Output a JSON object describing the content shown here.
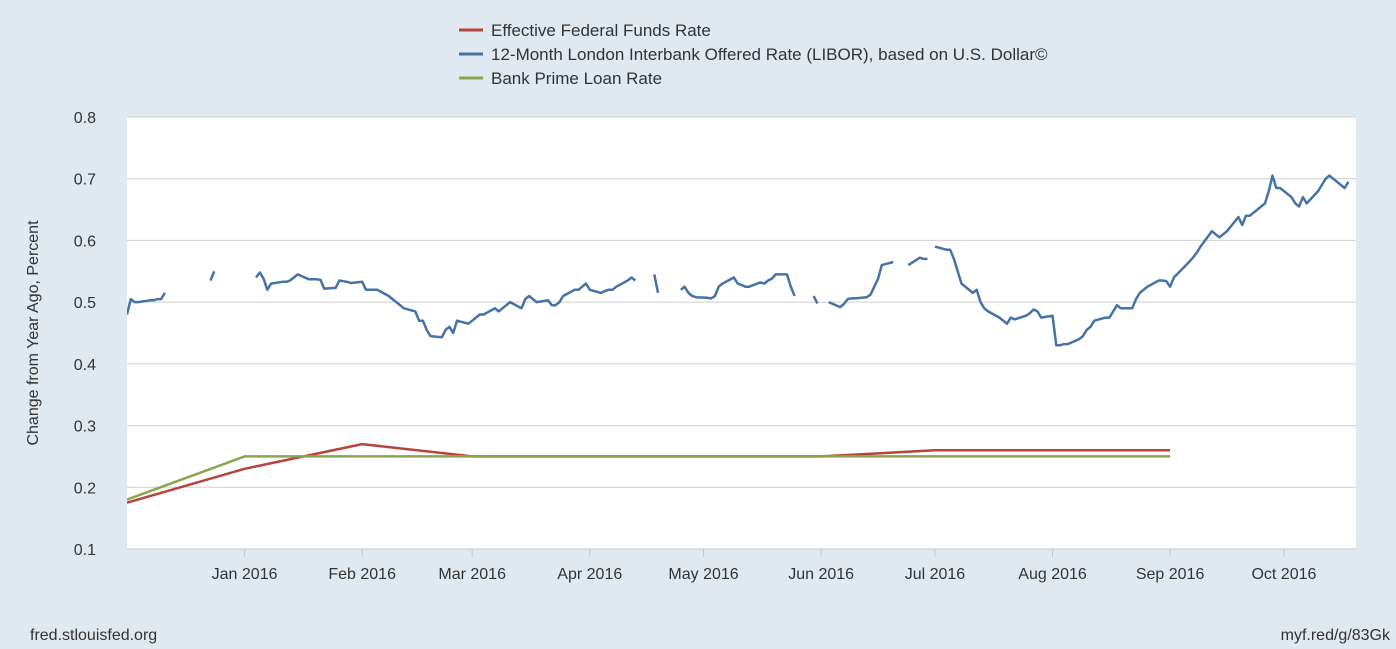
{
  "chart_data": {
    "type": "line",
    "ylabel": "Change from Year Ago, Percent",
    "ylim": [
      0.1,
      0.8
    ],
    "yticks": [
      0.1,
      0.2,
      0.3,
      0.4,
      0.5,
      0.6,
      0.7,
      0.8
    ],
    "ytick_labels": [
      "0.1",
      "0.2",
      "0.3",
      "0.4",
      "0.5",
      "0.6",
      "0.7",
      "0.8"
    ],
    "x_start": "2015-12-01",
    "x_end": "2016-10-20",
    "xtick_labels": [
      "Jan 2016",
      "Feb 2016",
      "Mar 2016",
      "Apr 2016",
      "May 2016",
      "Jun 2016",
      "Jul 2016",
      "Aug 2016",
      "Sep 2016",
      "Oct 2016"
    ],
    "xtick_dates": [
      "2016-01-01",
      "2016-02-01",
      "2016-03-01",
      "2016-04-01",
      "2016-05-01",
      "2016-06-01",
      "2016-07-01",
      "2016-08-01",
      "2016-09-01",
      "2016-10-01"
    ],
    "grid": true,
    "legend_position": "top-center",
    "series": [
      {
        "name": "Effective Federal Funds Rate",
        "color": "#b5443f",
        "points": [
          [
            "2015-12-01",
            0.175
          ],
          [
            "2016-01-01",
            0.23
          ],
          [
            "2016-02-01",
            0.27
          ],
          [
            "2016-03-01",
            0.25
          ],
          [
            "2016-04-01",
            0.25
          ],
          [
            "2016-05-01",
            0.25
          ],
          [
            "2016-06-01",
            0.25
          ],
          [
            "2016-07-01",
            0.26
          ],
          [
            "2016-08-01",
            0.26
          ],
          [
            "2016-09-01",
            0.26
          ]
        ]
      },
      {
        "name": "12-Month London Interbank Offered Rate (LIBOR), based on U.S. Dollar©",
        "color": "#4572a7",
        "points": [
          [
            "2015-12-01",
            0.48
          ],
          [
            "2015-12-02",
            0.505
          ],
          [
            "2015-12-03",
            0.5
          ],
          [
            "2015-12-04",
            0.5
          ],
          [
            "2015-12-07",
            0.503
          ],
          [
            "2015-12-08",
            0.503
          ],
          [
            "2015-12-09",
            0.505
          ],
          [
            "2015-12-10",
            0.505
          ],
          [
            "2015-12-11",
            0.515
          ],
          [
            "2015-12-14",
            null
          ],
          [
            "2015-12-23",
            0.535
          ],
          [
            "2015-12-24",
            0.55
          ],
          [
            "2015-12-25",
            null
          ],
          [
            "2016-01-04",
            0.54
          ],
          [
            "2016-01-05",
            0.548
          ],
          [
            "2016-01-06",
            0.538
          ],
          [
            "2016-01-07",
            0.52
          ],
          [
            "2016-01-08",
            0.53
          ],
          [
            "2016-01-11",
            0.533
          ],
          [
            "2016-01-12",
            0.533
          ],
          [
            "2016-01-13",
            0.535
          ],
          [
            "2016-01-14",
            0.54
          ],
          [
            "2016-01-15",
            0.545
          ],
          [
            "2016-01-18",
            0.537
          ],
          [
            "2016-01-19",
            0.537
          ],
          [
            "2016-01-20",
            0.537
          ],
          [
            "2016-01-21",
            0.536
          ],
          [
            "2016-01-22",
            0.522
          ],
          [
            "2016-01-25",
            0.523
          ],
          [
            "2016-01-26",
            0.535
          ],
          [
            "2016-01-27",
            0.534
          ],
          [
            "2016-01-28",
            0.533
          ],
          [
            "2016-01-29",
            0.531
          ],
          [
            "2016-02-01",
            0.533
          ],
          [
            "2016-02-02",
            0.52
          ],
          [
            "2016-02-03",
            0.52
          ],
          [
            "2016-02-04",
            0.52
          ],
          [
            "2016-02-05",
            0.52
          ],
          [
            "2016-02-08",
            0.51
          ],
          [
            "2016-02-09",
            0.505
          ],
          [
            "2016-02-10",
            0.5
          ],
          [
            "2016-02-11",
            0.495
          ],
          [
            "2016-02-12",
            0.49
          ],
          [
            "2016-02-15",
            0.485
          ],
          [
            "2016-02-16",
            0.47
          ],
          [
            "2016-02-17",
            0.47
          ],
          [
            "2016-02-18",
            0.455
          ],
          [
            "2016-02-19",
            0.445
          ],
          [
            "2016-02-22",
            0.443
          ],
          [
            "2016-02-23",
            0.455
          ],
          [
            "2016-02-24",
            0.46
          ],
          [
            "2016-02-25",
            0.45
          ],
          [
            "2016-02-26",
            0.47
          ],
          [
            "2016-02-29",
            0.465
          ],
          [
            "2016-03-01",
            0.47
          ],
          [
            "2016-03-02",
            0.475
          ],
          [
            "2016-03-03",
            0.48
          ],
          [
            "2016-03-04",
            0.48
          ],
          [
            "2016-03-07",
            0.49
          ],
          [
            "2016-03-08",
            0.485
          ],
          [
            "2016-03-09",
            0.49
          ],
          [
            "2016-03-10",
            0.495
          ],
          [
            "2016-03-11",
            0.5
          ],
          [
            "2016-03-14",
            0.49
          ],
          [
            "2016-03-15",
            0.505
          ],
          [
            "2016-03-16",
            0.51
          ],
          [
            "2016-03-17",
            0.505
          ],
          [
            "2016-03-18",
            0.5
          ],
          [
            "2016-03-21",
            0.503
          ],
          [
            "2016-03-22",
            0.495
          ],
          [
            "2016-03-23",
            0.495
          ],
          [
            "2016-03-24",
            0.5
          ],
          [
            "2016-03-25",
            0.51
          ],
          [
            "2016-03-28",
            0.52
          ],
          [
            "2016-03-29",
            0.52
          ],
          [
            "2016-03-30",
            0.525
          ],
          [
            "2016-03-31",
            0.53
          ],
          [
            "2016-04-01",
            0.52
          ],
          [
            "2016-04-04",
            0.515
          ],
          [
            "2016-04-05",
            0.518
          ],
          [
            "2016-04-06",
            0.52
          ],
          [
            "2016-04-07",
            0.52
          ],
          [
            "2016-04-08",
            0.525
          ],
          [
            "2016-04-11",
            0.535
          ],
          [
            "2016-04-12",
            0.54
          ],
          [
            "2016-04-13",
            0.535
          ],
          [
            "2016-04-14",
            null
          ],
          [
            "2016-04-18",
            0.545
          ],
          [
            "2016-04-19",
            0.515
          ],
          [
            "2016-04-20",
            null
          ],
          [
            "2016-04-25",
            0.52
          ],
          [
            "2016-04-26",
            0.525
          ],
          [
            "2016-04-27",
            0.515
          ],
          [
            "2016-04-28",
            0.51
          ],
          [
            "2016-04-29",
            0.508
          ],
          [
            "2016-05-02",
            0.507
          ],
          [
            "2016-05-03",
            0.506
          ],
          [
            "2016-05-04",
            0.51
          ],
          [
            "2016-05-05",
            0.525
          ],
          [
            "2016-05-06",
            0.53
          ],
          [
            "2016-05-09",
            0.54
          ],
          [
            "2016-05-10",
            0.53
          ],
          [
            "2016-05-11",
            0.528
          ],
          [
            "2016-05-12",
            0.525
          ],
          [
            "2016-05-13",
            0.525
          ],
          [
            "2016-05-16",
            0.532
          ],
          [
            "2016-05-17",
            0.53
          ],
          [
            "2016-05-18",
            0.535
          ],
          [
            "2016-05-19",
            0.538
          ],
          [
            "2016-05-20",
            0.545
          ],
          [
            "2016-05-23",
            0.545
          ],
          [
            "2016-05-24",
            0.525
          ],
          [
            "2016-05-25",
            0.51
          ],
          [
            "2016-05-26",
            null
          ],
          [
            "2016-05-30",
            0.51
          ],
          [
            "2016-05-31",
            0.498
          ],
          [
            "2016-06-01",
            null
          ],
          [
            "2016-06-03",
            0.5
          ],
          [
            "2016-06-06",
            0.492
          ],
          [
            "2016-06-07",
            0.497
          ],
          [
            "2016-06-08",
            0.505
          ],
          [
            "2016-06-09",
            0.506
          ],
          [
            "2016-06-10",
            0.506
          ],
          [
            "2016-06-13",
            0.508
          ],
          [
            "2016-06-14",
            0.512
          ],
          [
            "2016-06-15",
            0.525
          ],
          [
            "2016-06-16",
            0.538
          ],
          [
            "2016-06-17",
            0.56
          ],
          [
            "2016-06-20",
            0.565
          ],
          [
            "2016-06-21",
            null
          ],
          [
            "2016-06-24",
            0.56
          ],
          [
            "2016-06-27",
            0.572
          ],
          [
            "2016-06-28",
            0.57
          ],
          [
            "2016-06-29",
            0.57
          ],
          [
            "2016-06-30",
            null
          ],
          [
            "2016-07-01",
            0.59
          ],
          [
            "2016-07-04",
            0.585
          ],
          [
            "2016-07-05",
            0.585
          ],
          [
            "2016-07-06",
            0.57
          ],
          [
            "2016-07-07",
            0.55
          ],
          [
            "2016-07-08",
            0.53
          ],
          [
            "2016-07-11",
            0.515
          ],
          [
            "2016-07-12",
            0.52
          ],
          [
            "2016-07-13",
            0.5
          ],
          [
            "2016-07-14",
            0.49
          ],
          [
            "2016-07-15",
            0.485
          ],
          [
            "2016-07-18",
            0.475
          ],
          [
            "2016-07-19",
            0.47
          ],
          [
            "2016-07-20",
            0.465
          ],
          [
            "2016-07-21",
            0.475
          ],
          [
            "2016-07-22",
            0.472
          ],
          [
            "2016-07-25",
            0.478
          ],
          [
            "2016-07-26",
            0.482
          ],
          [
            "2016-07-27",
            0.488
          ],
          [
            "2016-07-28",
            0.485
          ],
          [
            "2016-07-29",
            0.475
          ],
          [
            "2016-08-01",
            0.478
          ],
          [
            "2016-08-02",
            0.43
          ],
          [
            "2016-08-03",
            0.43
          ],
          [
            "2016-08-04",
            0.432
          ],
          [
            "2016-08-05",
            0.432
          ],
          [
            "2016-08-08",
            0.44
          ],
          [
            "2016-08-09",
            0.445
          ],
          [
            "2016-08-10",
            0.455
          ],
          [
            "2016-08-11",
            0.46
          ],
          [
            "2016-08-12",
            0.47
          ],
          [
            "2016-08-15",
            0.475
          ],
          [
            "2016-08-16",
            0.475
          ],
          [
            "2016-08-17",
            0.485
          ],
          [
            "2016-08-18",
            0.495
          ],
          [
            "2016-08-19",
            0.49
          ],
          [
            "2016-08-22",
            0.49
          ],
          [
            "2016-08-23",
            0.505
          ],
          [
            "2016-08-24",
            0.515
          ],
          [
            "2016-08-25",
            0.52
          ],
          [
            "2016-08-26",
            0.525
          ],
          [
            "2016-08-29",
            0.535
          ],
          [
            "2016-08-30",
            0.535
          ],
          [
            "2016-08-31",
            0.534
          ],
          [
            "2016-09-01",
            0.525
          ],
          [
            "2016-09-02",
            0.54
          ],
          [
            "2016-09-06",
            0.565
          ],
          [
            "2016-09-07",
            0.572
          ],
          [
            "2016-09-08",
            0.58
          ],
          [
            "2016-09-09",
            0.59
          ],
          [
            "2016-09-12",
            0.615
          ],
          [
            "2016-09-13",
            0.61
          ],
          [
            "2016-09-14",
            0.605
          ],
          [
            "2016-09-15",
            0.61
          ],
          [
            "2016-09-16",
            0.615
          ],
          [
            "2016-09-19",
            0.638
          ],
          [
            "2016-09-20",
            0.625
          ],
          [
            "2016-09-21",
            0.64
          ],
          [
            "2016-09-22",
            0.64
          ],
          [
            "2016-09-23",
            0.645
          ],
          [
            "2016-09-26",
            0.66
          ],
          [
            "2016-09-27",
            0.68
          ],
          [
            "2016-09-28",
            0.705
          ],
          [
            "2016-09-29",
            0.685
          ],
          [
            "2016-09-30",
            0.685
          ],
          [
            "2016-10-03",
            0.67
          ],
          [
            "2016-10-04",
            0.66
          ],
          [
            "2016-10-05",
            0.655
          ],
          [
            "2016-10-06",
            0.67
          ],
          [
            "2016-10-07",
            0.66
          ],
          [
            "2016-10-10",
            0.68
          ],
          [
            "2016-10-11",
            0.69
          ],
          [
            "2016-10-12",
            0.7
          ],
          [
            "2016-10-13",
            0.705
          ],
          [
            "2016-10-14",
            0.7
          ],
          [
            "2016-10-17",
            0.685
          ],
          [
            "2016-10-18",
            0.695
          ]
        ]
      },
      {
        "name": "Bank Prime Loan Rate",
        "color": "#89a54e",
        "points": [
          [
            "2015-12-01",
            0.18
          ],
          [
            "2016-01-01",
            0.25
          ],
          [
            "2016-02-01",
            0.25
          ],
          [
            "2016-03-01",
            0.25
          ],
          [
            "2016-04-01",
            0.25
          ],
          [
            "2016-05-01",
            0.25
          ],
          [
            "2016-06-01",
            0.25
          ],
          [
            "2016-07-01",
            0.25
          ],
          [
            "2016-08-01",
            0.25
          ],
          [
            "2016-09-01",
            0.25
          ]
        ]
      }
    ]
  },
  "footer": {
    "source": "fred.stlouisfed.org",
    "short_url": "myf.red/g/83Gk"
  }
}
